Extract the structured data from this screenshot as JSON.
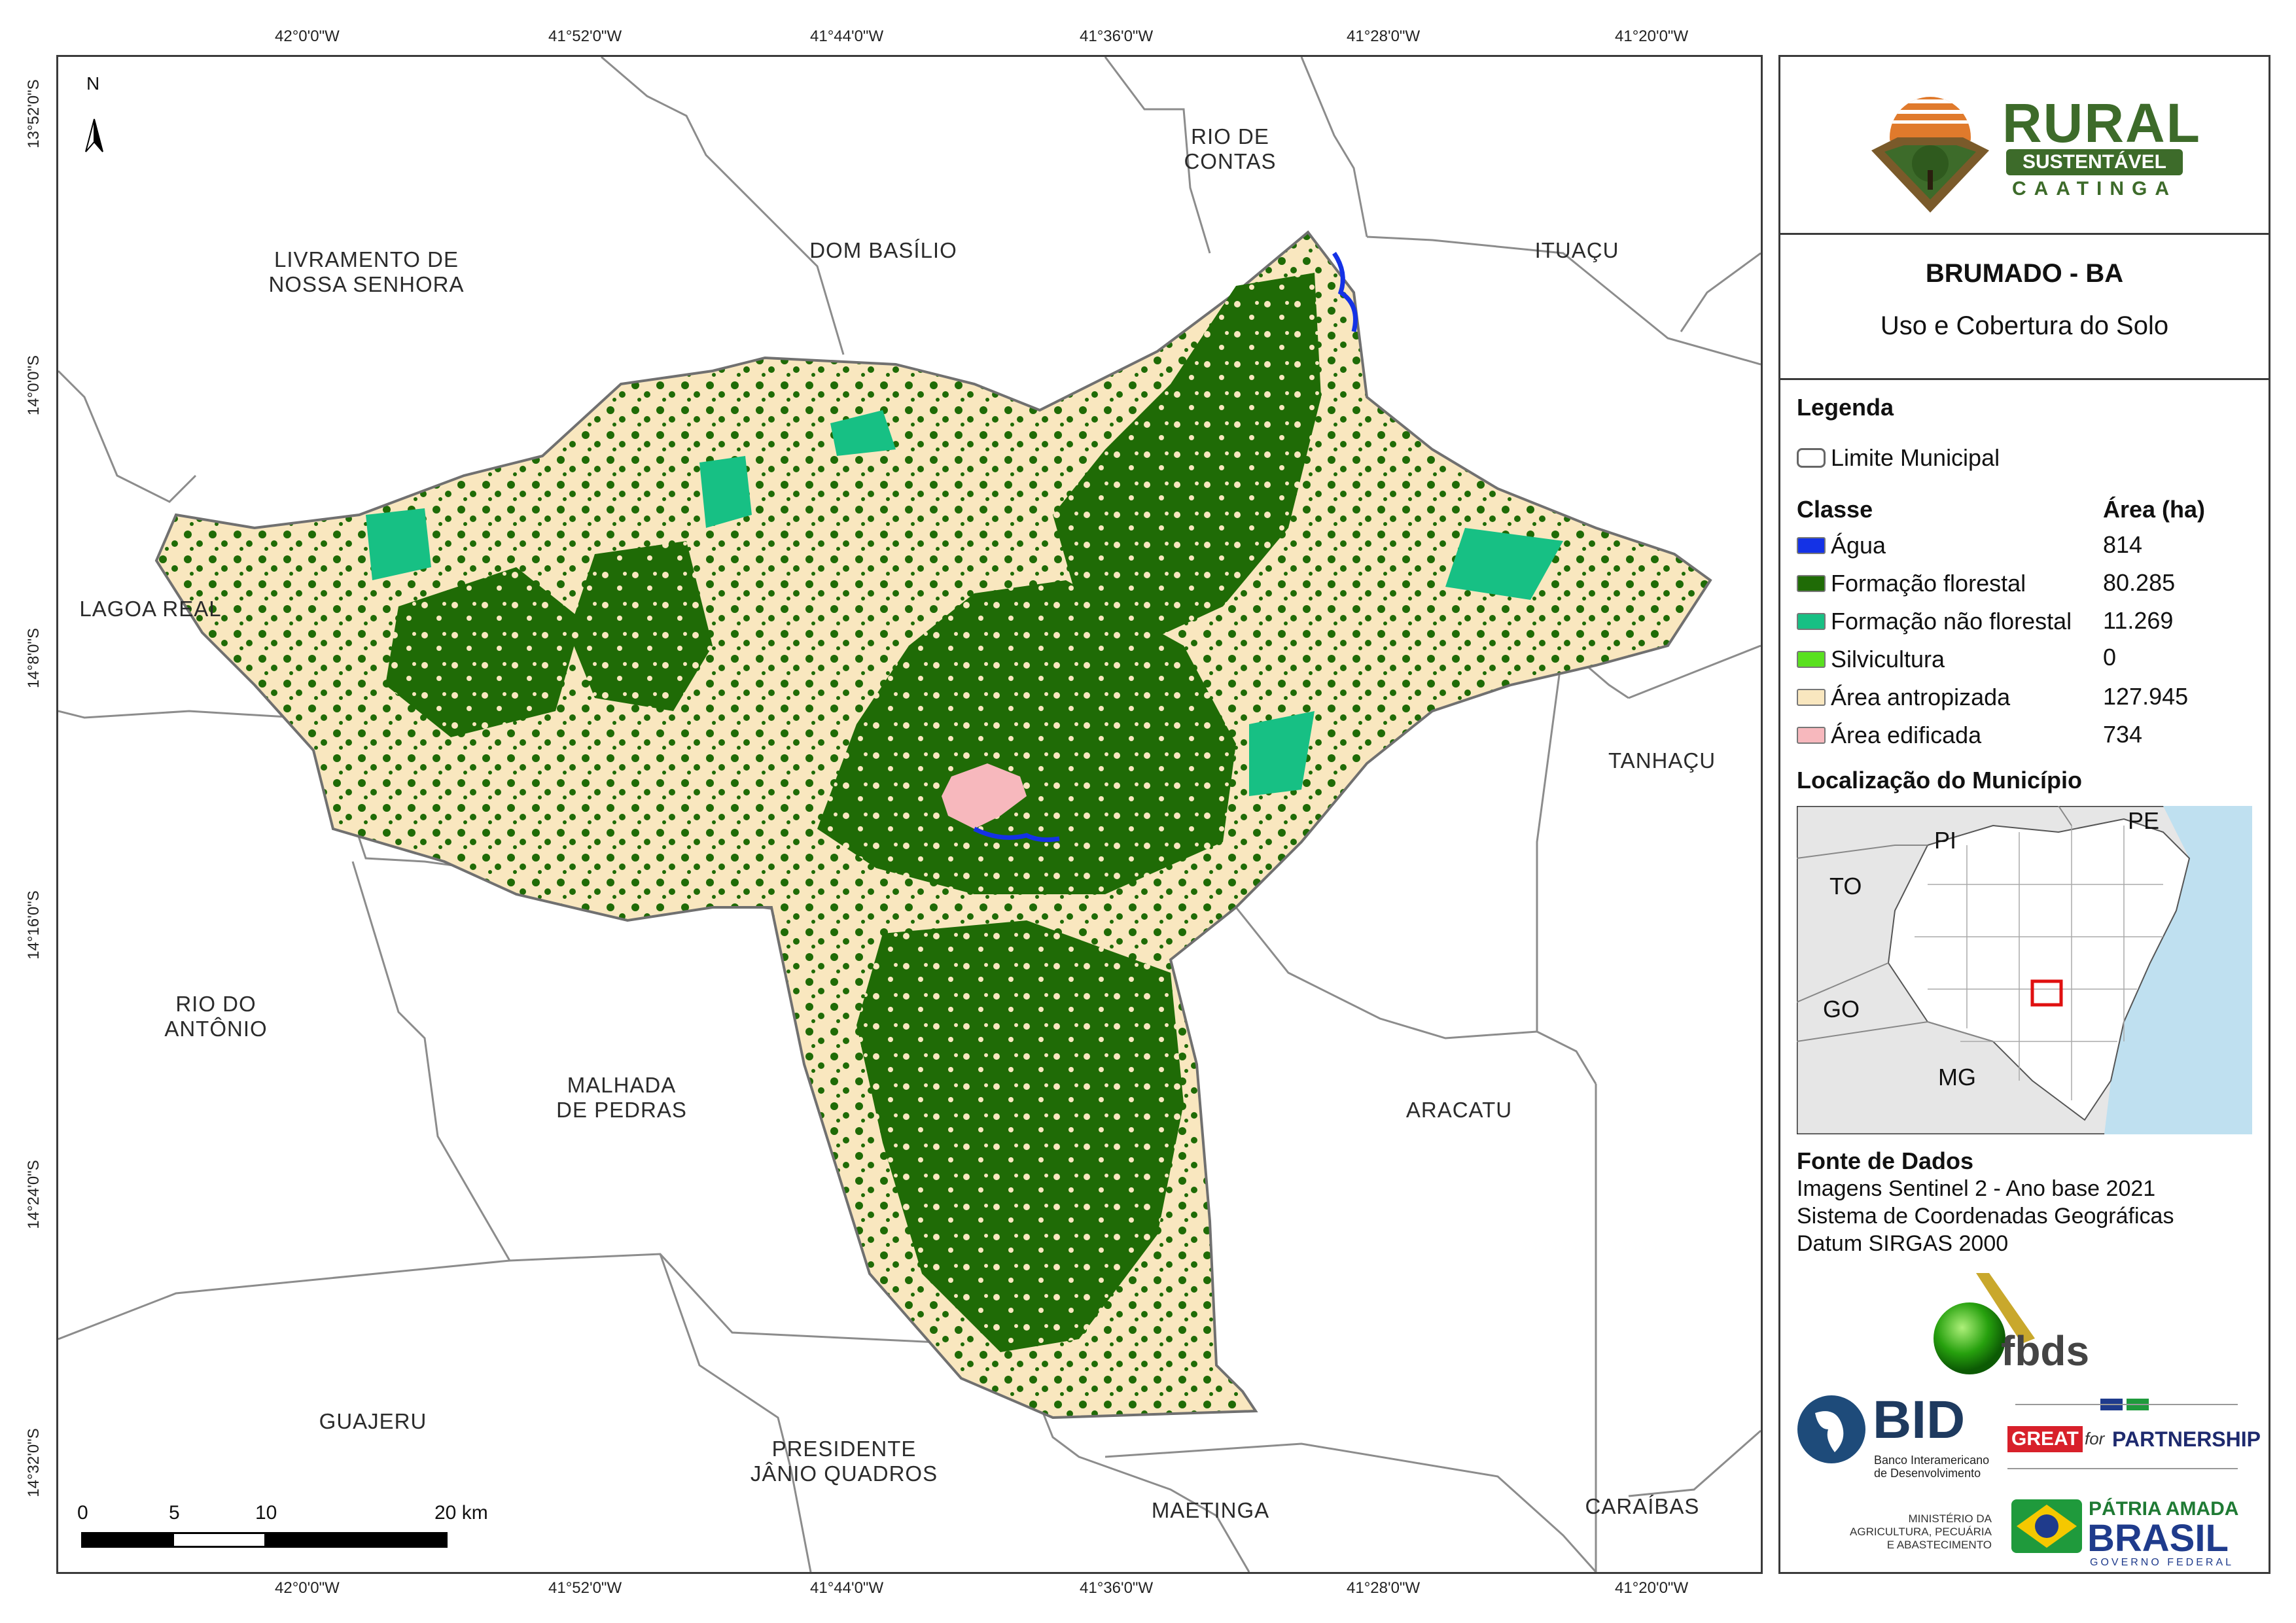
{
  "map": {
    "municipalities": [
      {
        "name": "LIVRAMENTO DE\nNOSSA SENHORA"
      },
      {
        "name": "DOM BASÍLIO"
      },
      {
        "name": "RIO DE\nCONTAS"
      },
      {
        "name": "ITUAÇU"
      },
      {
        "name": "LAGOA REAL"
      },
      {
        "name": "TANHAÇU"
      },
      {
        "name": "RIO DO\nANTÔNIO"
      },
      {
        "name": "MALHADA\nDE PEDRAS"
      },
      {
        "name": "ARACATU"
      },
      {
        "name": "GUAJERU"
      },
      {
        "name": "PRESIDENTE\nJÂNIO QUADROS"
      },
      {
        "name": "MAETINGA"
      },
      {
        "name": "CARAÍBAS"
      }
    ],
    "north_label": "N",
    "longitude_ticks": [
      "42°0'0\"W",
      "41°52'0\"W",
      "41°44'0\"W",
      "41°36'0\"W",
      "41°28'0\"W",
      "41°20'0\"W"
    ],
    "latitude_ticks": [
      "13°52'0\"S",
      "14°0'0\"S",
      "14°8'0\"S",
      "14°16'0\"S",
      "14°24'0\"S",
      "14°32'0\"S"
    ],
    "scale_bar": {
      "labels": [
        "0",
        "5",
        "10",
        "20 km"
      ]
    }
  },
  "panel": {
    "logo": {
      "line1": "RURAL",
      "line2": "SUSTENTÁVEL",
      "line3": "CAATINGA",
      "colors": {
        "green": "#3d6b2a",
        "brown": "#7a5a2a",
        "orange": "#e07a2c"
      }
    },
    "title": "BRUMADO - BA",
    "subtitle": "Uso e Cobertura do Solo",
    "legend_title": "Legenda",
    "limit_label": "Limite Municipal",
    "class_header": "Classe",
    "area_header": "Área (ha)",
    "classes": [
      {
        "label": "Água",
        "area": "814",
        "color": "#1432e6"
      },
      {
        "label": "Formação florestal",
        "area": "80.285",
        "color": "#1f6b06"
      },
      {
        "label": "Formação não florestal",
        "area": "11.269",
        "color": "#17c084"
      },
      {
        "label": "Silvicultura",
        "area": "0",
        "color": "#59e01f"
      },
      {
        "label": "Área antropizada",
        "area": "127.945",
        "color": "#f9e7bf"
      },
      {
        "label": "Área edificada",
        "area": "734",
        "color": "#f7b8bd"
      }
    ],
    "location_title": "Localização do Município",
    "inset_labels": [
      "PI",
      "PE",
      "TO",
      "GO",
      "MG"
    ],
    "source_title": "Fonte de Dados",
    "source_lines": [
      "Imagens Sentinel 2 - Ano base 2021",
      "Sistema de Coordenadas Geográficas",
      "Datum SIRGAS 2000"
    ],
    "sponsors": {
      "fbds": "fbds",
      "bid": "BID",
      "bid_sub": "Banco Interamericano\nde Desenvolvimento",
      "great": "GREAT",
      "great_for": "for",
      "partnership": "PARTNERSHIP",
      "ministry": "MINISTÉRIO DA\nAGRICULTURA, PECUÁRIA\nE ABASTECIMENTO",
      "patria": "PÁTRIA AMADA",
      "brasil": "BRASIL",
      "governo": "GOVERNO FEDERAL"
    }
  }
}
